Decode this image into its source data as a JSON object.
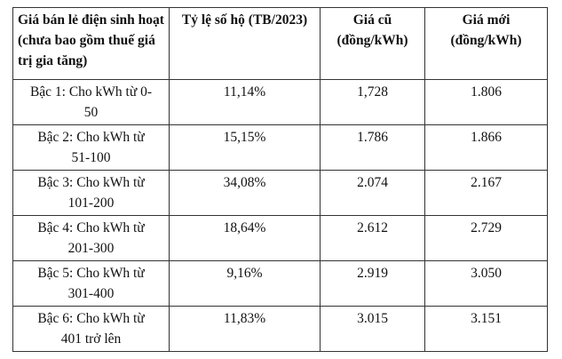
{
  "table": {
    "header": [
      "Giá bán lẻ điện sinh hoạt (chưa bao gồm thuế giá trị gia tăng)",
      "Tỷ lệ số hộ (TB/2023)",
      "Giá cũ (đồng/kWh)",
      "Giá mới (đồng/kWh)"
    ],
    "rows": [
      [
        "Bậc 1: Cho kWh từ 0-50",
        "11,14%",
        "1,728",
        "1.806"
      ],
      [
        "Bậc 2: Cho kWh từ 51-100",
        "15,15%",
        "1.786",
        "1.866"
      ],
      [
        "Bậc 3: Cho kWh từ 101-200",
        "34,08%",
        "2.074",
        "2.167"
      ],
      [
        "Bậc 4: Cho kWh từ 201-300",
        "18,64%",
        "2.612",
        "2.729"
      ],
      [
        "Bậc 5: Cho kWh từ 301-400",
        "9,16%",
        "2.919",
        "3.050"
      ],
      [
        "Bậc 6: Cho kWh từ 401 trở lên",
        "11,83%",
        "3.015",
        "3.151"
      ]
    ]
  }
}
